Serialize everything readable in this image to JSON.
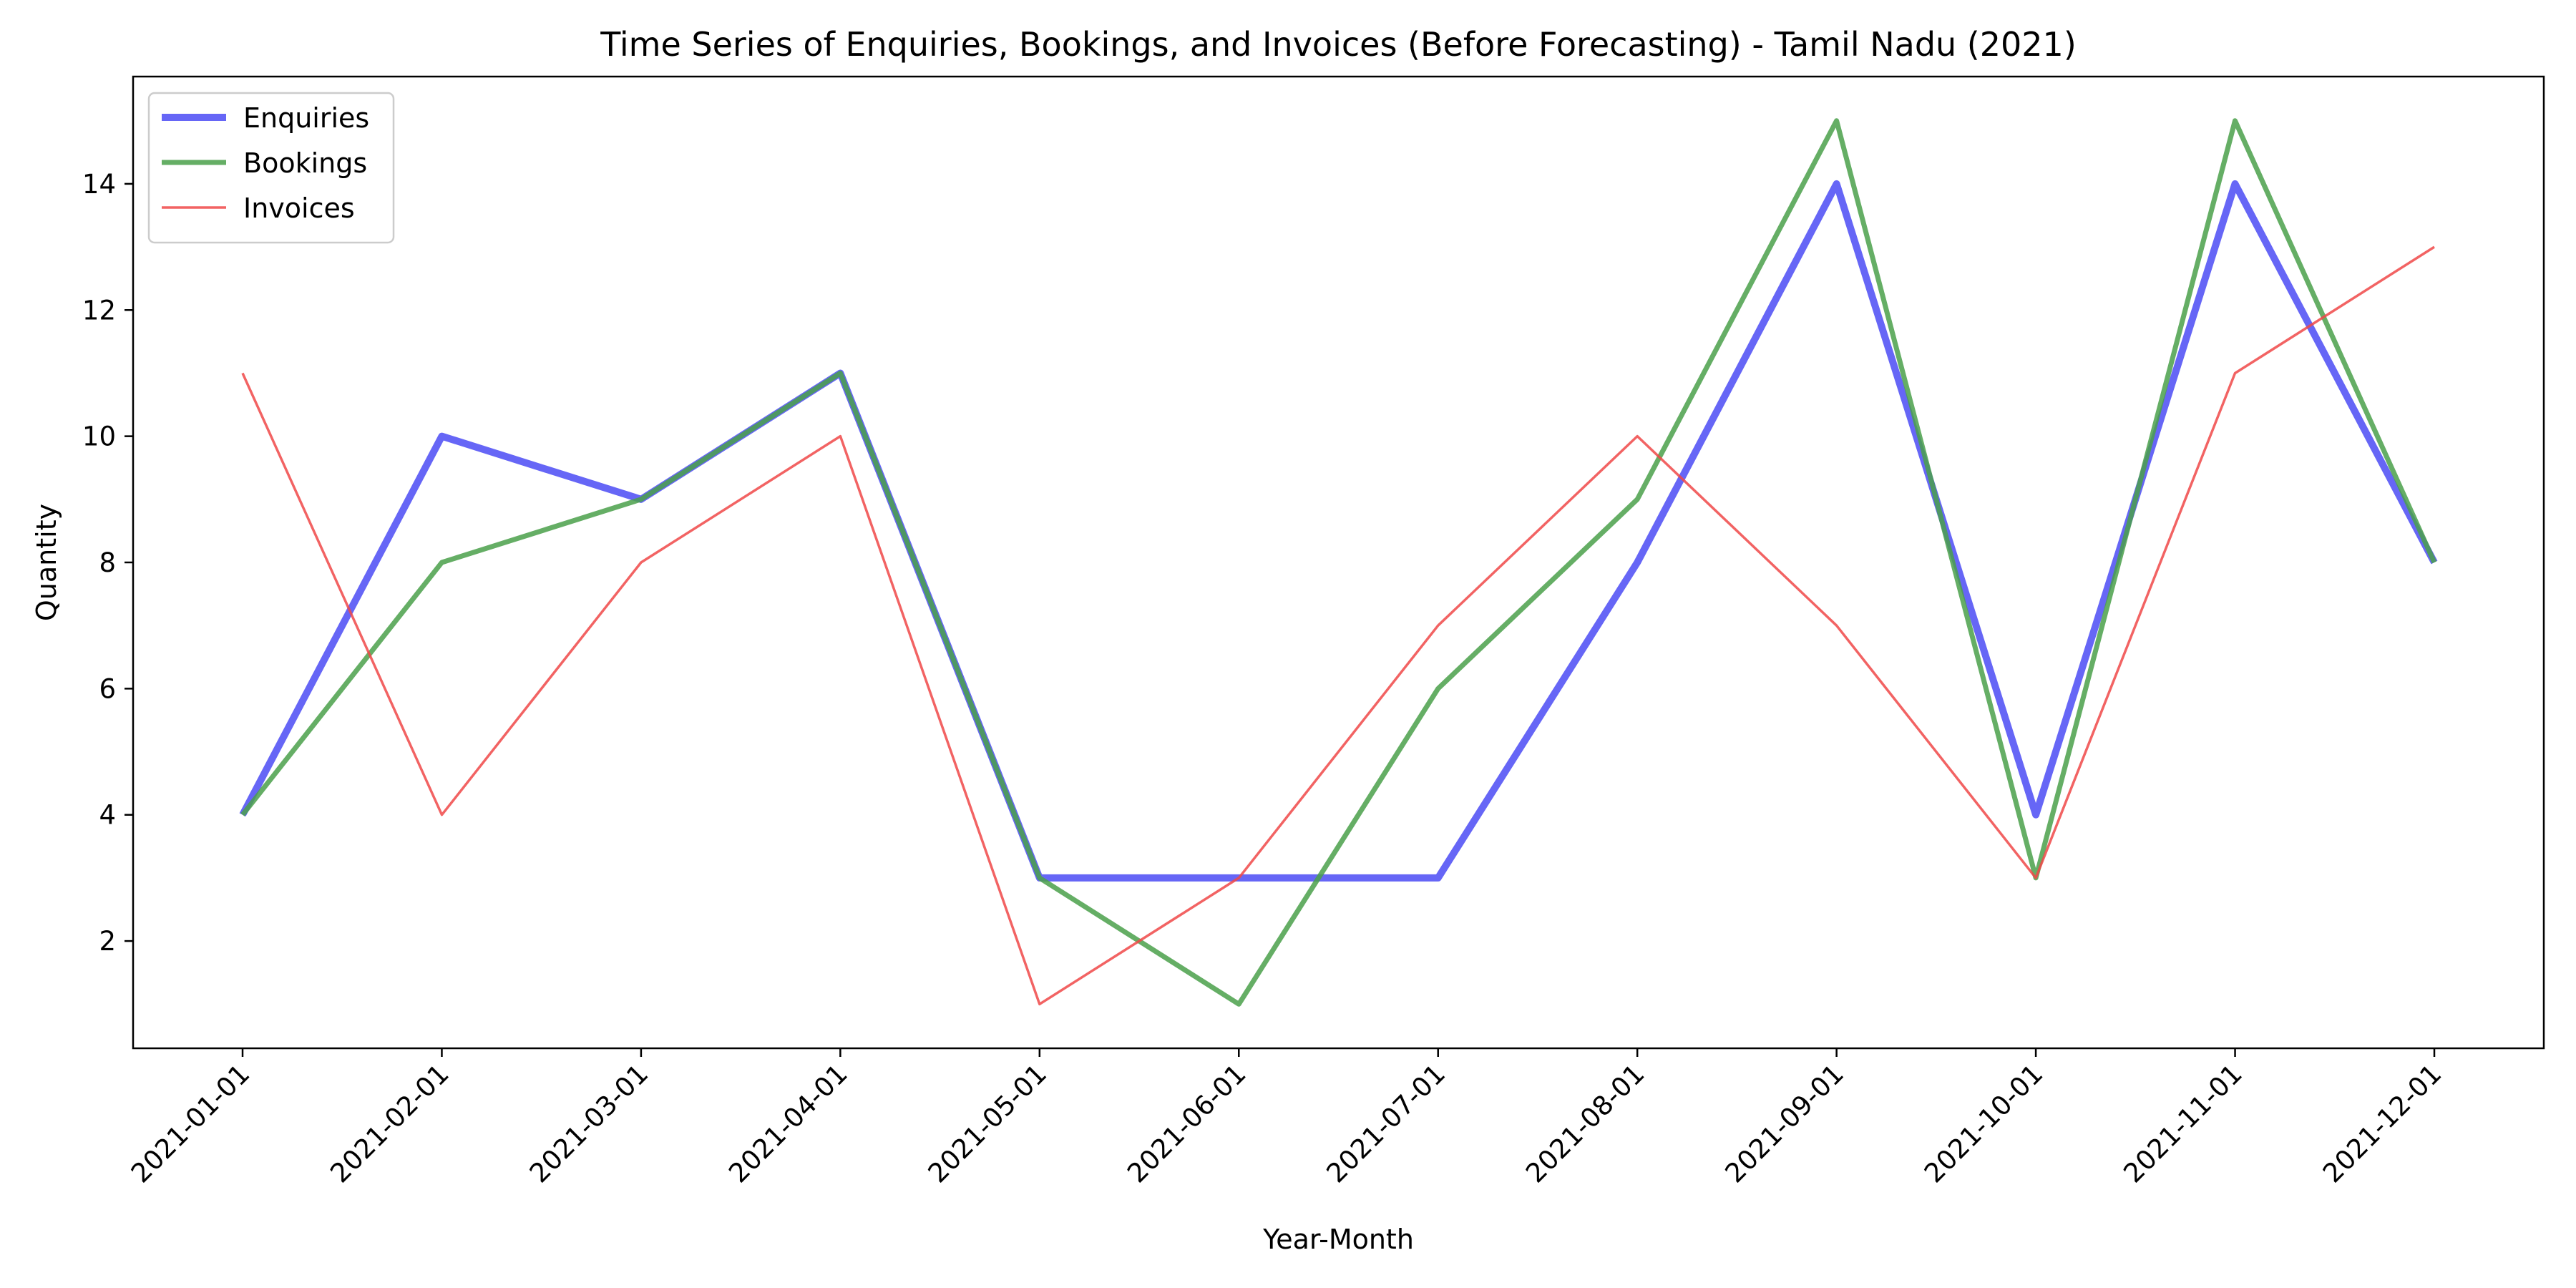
{
  "chart_data": {
    "type": "line",
    "title": "Time Series of Enquiries, Bookings, and Invoices (Before Forecasting) - Tamil Nadu (2021)",
    "xlabel": "Year-Month",
    "ylabel": "Quantity",
    "categories": [
      "2021-01-01",
      "2021-02-01",
      "2021-03-01",
      "2021-04-01",
      "2021-05-01",
      "2021-06-01",
      "2021-07-01",
      "2021-08-01",
      "2021-09-01",
      "2021-10-01",
      "2021-11-01",
      "2021-12-01"
    ],
    "yticks": [
      2,
      4,
      6,
      8,
      10,
      12,
      14
    ],
    "ylim": [
      0.3,
      15.7
    ],
    "grid": false,
    "legend_position": "top-left",
    "series": [
      {
        "name": "Enquiries",
        "color": "#4b4bf5",
        "values": [
          4,
          10,
          9,
          11,
          3,
          3,
          3,
          8,
          14,
          4,
          14,
          8
        ]
      },
      {
        "name": "Bookings",
        "color": "#4aa04a",
        "values": [
          4,
          8,
          9,
          11,
          3,
          1,
          6,
          9,
          15,
          3,
          15,
          8
        ]
      },
      {
        "name": "Invoices",
        "color": "#f04848",
        "values": [
          11,
          4,
          8,
          10,
          1,
          3,
          7,
          10,
          7,
          3,
          11,
          13
        ]
      }
    ]
  }
}
